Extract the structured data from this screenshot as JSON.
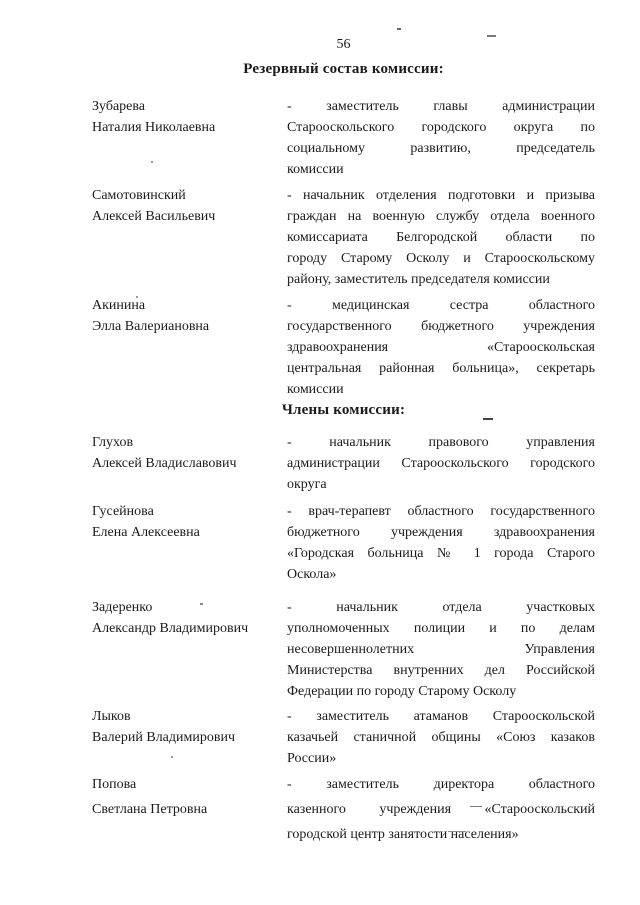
{
  "colors": {
    "ink": "#1b1b1b",
    "paper": "#ffffff"
  },
  "page_number": "56",
  "sections": [
    {
      "title": "Резервный состав комиссии:",
      "entries": [
        {
          "surname": "Зубарева",
          "given_names": "Наталия Николаевна",
          "role_lines": [
            "- заместитель главы администрации",
            "Старооскольского городского округа по",
            "социальному развитию, председатель",
            "комиссии"
          ]
        },
        {
          "surname": "Самотовинский",
          "given_names": "Алексей Васильевич",
          "role_lines": [
            "- начальник отделения подготовки и призыва",
            "граждан на военную службу отдела военного",
            "комиссариата Белгородской области по",
            "городу Старому Осколу и Старооскольскому",
            "району, заместитель председателя комиссии"
          ]
        },
        {
          "surname": "Акинина",
          "given_names": "Элла Валериановна",
          "role_lines": [
            "- медицинская сестра областного",
            "государственного бюджетного учреждения",
            "здравоохранения «Старооскольская",
            "центральная районная больница», секретарь",
            "комиссии"
          ]
        }
      ]
    },
    {
      "title": "Члены комиссии:",
      "entries": [
        {
          "surname": "Глухов",
          "given_names": "Алексей Владиславович",
          "role_lines": [
            "- начальник правового управления",
            "администрации Старооскольского городского",
            "округа"
          ]
        },
        {
          "surname": "Гусейнова",
          "given_names": "Елена Алексеевна",
          "role_lines": [
            "- врач-терапевт областного государственного",
            "бюджетного учреждения здравоохранения",
            "«Городская больница № 1 города Старого",
            "Оскола»"
          ]
        },
        {
          "surname": "Задеренко",
          "given_names": "Александр Владимирович",
          "role_lines": [
            "- начальник отдела участковых",
            "уполномоченных полиции и по делам",
            "несовершеннолетних Управления",
            "Министерства внутренних дел Российской",
            "Федерации по городу Старому Осколу"
          ]
        },
        {
          "surname": "Лыков",
          "given_names": "Валерий Владимирович",
          "role_lines": [
            "- заместитель атаманов Старооскольской",
            "казачьей станичной общины «Союз казаков",
            "России»"
          ]
        },
        {
          "surname": "Попова",
          "given_names": "Светлана Петровна",
          "role_lines": [
            "- заместитель директора областного",
            "казенного учреждения «Старооскольский",
            "городской центр занятости населения»"
          ]
        }
      ]
    }
  ]
}
